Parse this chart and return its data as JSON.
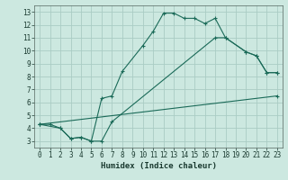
{
  "xlabel": "Humidex (Indice chaleur)",
  "bg_color": "#cce8e0",
  "grid_color": "#aaccc4",
  "line_color": "#1a6a58",
  "xlim": [
    -0.5,
    23.5
  ],
  "ylim": [
    2.5,
    13.5
  ],
  "xticks": [
    0,
    1,
    2,
    3,
    4,
    5,
    6,
    7,
    8,
    9,
    10,
    11,
    12,
    13,
    14,
    15,
    16,
    17,
    18,
    19,
    20,
    21,
    22,
    23
  ],
  "yticks": [
    3,
    4,
    5,
    6,
    7,
    8,
    9,
    10,
    11,
    12,
    13
  ],
  "line1_x": [
    0,
    1,
    2,
    3,
    4,
    5,
    6,
    7,
    8,
    10,
    11,
    12,
    13,
    14,
    15,
    16,
    17,
    18,
    20,
    21,
    22,
    23
  ],
  "line1_y": [
    4.3,
    4.3,
    4.0,
    3.2,
    3.3,
    3.0,
    6.3,
    6.5,
    8.4,
    10.4,
    11.5,
    12.9,
    12.9,
    12.5,
    12.5,
    12.1,
    12.5,
    11.0,
    9.9,
    9.6,
    8.3,
    8.3
  ],
  "line2_x": [
    0,
    2,
    3,
    4,
    5,
    6,
    7,
    17,
    18,
    20,
    21,
    22,
    23
  ],
  "line2_y": [
    4.3,
    4.0,
    3.2,
    3.3,
    3.0,
    3.0,
    4.5,
    11.0,
    11.0,
    9.9,
    9.6,
    8.3,
    8.3
  ],
  "line3_x": [
    0,
    23
  ],
  "line3_y": [
    4.3,
    6.5
  ]
}
